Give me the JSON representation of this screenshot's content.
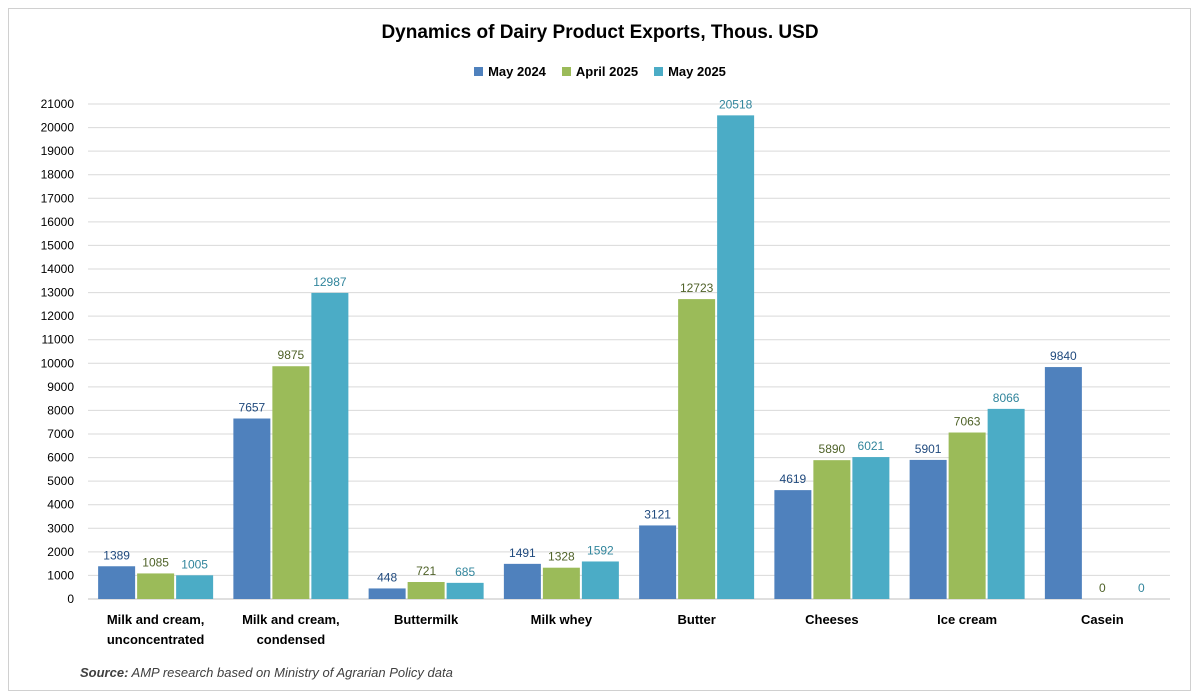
{
  "chart_data": {
    "type": "bar",
    "title": "Dynamics of Dairy Product Exports, Thous. USD",
    "categories": [
      "Milk and cream, unconcentrated",
      "Milk and cream, condensed",
      "Buttermilk",
      "Milk whey",
      "Butter",
      "Cheeses",
      "Ice cream",
      "Casein"
    ],
    "series": [
      {
        "name": "May 2024",
        "color": "#4f81bd",
        "label_color": "#1f497d",
        "values": [
          1389,
          7657,
          448,
          1491,
          3121,
          4619,
          5901,
          9840
        ]
      },
      {
        "name": "April 2025",
        "color": "#9bbb59",
        "label_color": "#4f6228",
        "values": [
          1085,
          9875,
          721,
          1328,
          12723,
          5890,
          7063,
          0
        ]
      },
      {
        "name": "May 2025",
        "color": "#4bacc6",
        "label_color": "#31859c",
        "values": [
          1005,
          12987,
          685,
          1592,
          20518,
          6021,
          8066,
          0
        ]
      }
    ],
    "ylim": [
      0,
      21000
    ],
    "ytick_step": 1000,
    "grid": true,
    "legend_position": "top",
    "xlabel": "",
    "ylabel": ""
  },
  "source": {
    "label": "Source:",
    "text": " AMP research based on Ministry of Agrarian Policy data"
  }
}
